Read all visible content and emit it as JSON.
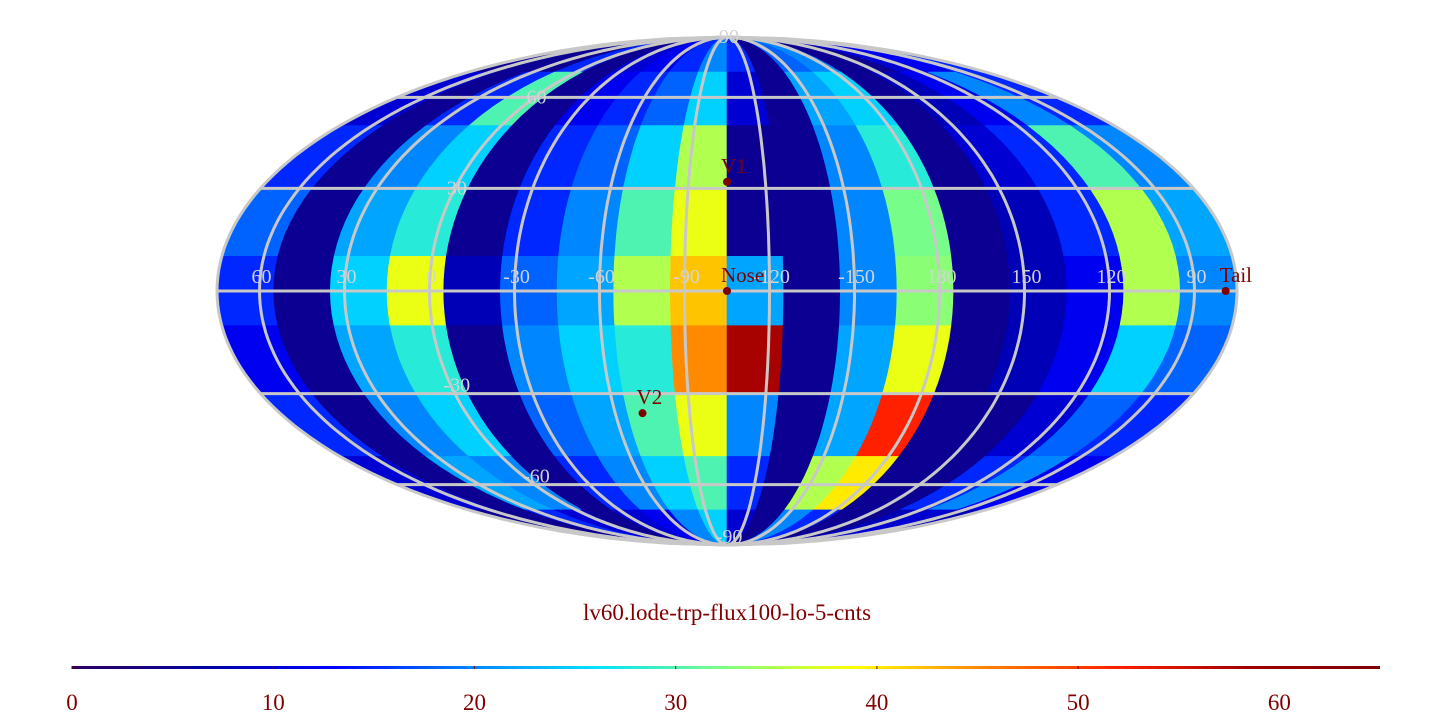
{
  "chart_data": {
    "type": "heatmap",
    "title": "lv60.lode-trp-flux100-lo-5-cnts",
    "lon": [
      65,
      45,
      25,
      5,
      -15,
      -35,
      -55,
      -75,
      -95,
      -115,
      -135,
      -155,
      -175,
      165,
      145,
      125,
      105,
      85
    ],
    "lat": [
      80,
      60,
      40,
      20,
      0,
      -20,
      -40,
      -60,
      -80
    ],
    "values": [
      [
        5,
        5,
        5,
        15,
        5,
        10,
        12,
        15,
        20,
        15,
        5,
        18,
        20,
        5,
        5,
        10,
        12,
        15
      ],
      [
        10,
        5,
        15,
        30,
        5,
        12,
        15,
        18,
        25,
        10,
        5,
        22,
        25,
        5,
        8,
        12,
        20,
        15
      ],
      [
        15,
        5,
        20,
        25,
        5,
        15,
        18,
        25,
        35,
        5,
        5,
        20,
        28,
        5,
        10,
        15,
        30,
        20
      ],
      [
        18,
        5,
        22,
        28,
        5,
        15,
        20,
        30,
        38,
        5,
        5,
        20,
        32,
        5,
        8,
        15,
        35,
        22
      ],
      [
        15,
        5,
        25,
        38,
        8,
        18,
        22,
        35,
        42,
        22,
        5,
        20,
        33,
        5,
        8,
        12,
        35,
        20
      ],
      [
        12,
        5,
        22,
        28,
        5,
        20,
        25,
        28,
        45,
        58,
        5,
        22,
        38,
        5,
        8,
        12,
        25,
        18
      ],
      [
        15,
        5,
        20,
        25,
        5,
        18,
        22,
        30,
        38,
        20,
        5,
        22,
        52,
        5,
        5,
        10,
        18,
        15
      ],
      [
        10,
        5,
        22,
        20,
        5,
        15,
        20,
        25,
        30,
        15,
        5,
        35,
        40,
        5,
        5,
        15,
        20,
        12
      ],
      [
        5,
        5,
        15,
        10,
        5,
        10,
        12,
        20,
        25,
        10,
        5,
        20,
        15,
        5,
        5,
        8,
        10,
        8
      ]
    ],
    "colormap": [
      "#300060",
      "#0000a0",
      "#0000ff",
      "#0080ff",
      "#00e0ff",
      "#80ff80",
      "#ffff00",
      "#ff8000",
      "#ff2000",
      "#a00000",
      "#800000"
    ],
    "meridians": [
      60,
      30,
      0,
      -30,
      -60,
      -90,
      -120,
      -150,
      180,
      150,
      120,
      90
    ],
    "parallels": [
      90,
      60,
      30,
      -30,
      -60,
      -90
    ],
    "markers": [
      {
        "name": "V1",
        "lon": -105,
        "lat": 32
      },
      {
        "name": "Nose",
        "lon": -105,
        "lat": 0
      },
      {
        "name": "V2",
        "lon": -71,
        "lat": -36
      },
      {
        "name": "Tail",
        "lon": 79,
        "lat": 0
      }
    ],
    "clim": [
      0,
      65
    ],
    "cticks": [
      0,
      10,
      20,
      30,
      40,
      50,
      60
    ]
  }
}
